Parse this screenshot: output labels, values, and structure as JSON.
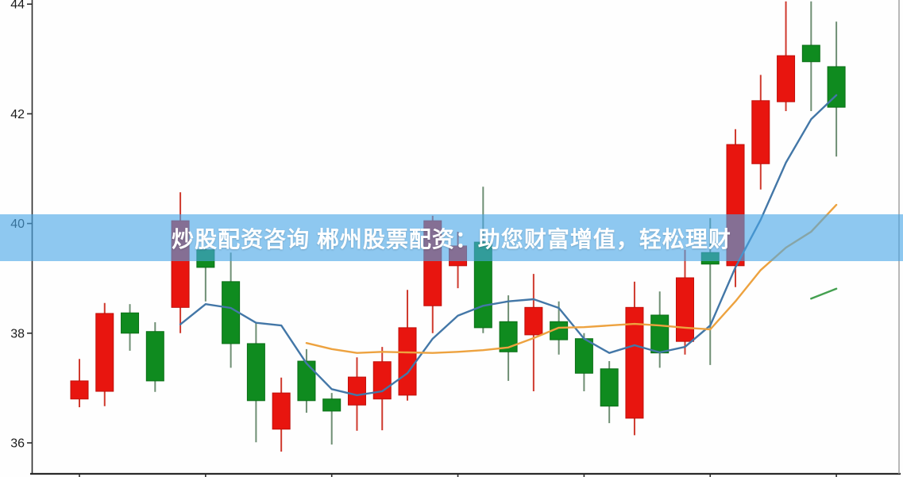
{
  "banner": {
    "text": "炒股配资咨询 郴州股票配资：助您财富增值，轻松理财",
    "bg_color": "rgba(72,166,231,0.62)",
    "text_color": "#ffffff"
  },
  "chart_data": {
    "type": "candlestick",
    "title": "",
    "xlabel": "",
    "ylabel": "",
    "y_ticks": [
      36,
      38,
      40,
      42,
      44
    ],
    "y_range": [
      35.45,
      44.08
    ],
    "x_tick_candle_indices": [
      0,
      5,
      10,
      15,
      20,
      25,
      30
    ],
    "grid": false,
    "legend_position": "none",
    "colors": {
      "up": "#e8150f",
      "up_border": "#c00f0a",
      "up_wick": "#cf3a2e",
      "down": "#0f8b1f",
      "down_border": "#0a6e16",
      "down_wick": "#6f8f74",
      "ma5": "#4377a7",
      "ma10": "#eda23f",
      "ma30": "#44a050",
      "axis": "#2b2b2b",
      "tick_label": "#1c1c1c",
      "right_spine": "#9a9a9a"
    },
    "candles": [
      {
        "o": 36.8,
        "h": 37.53,
        "l": 36.65,
        "c": 37.13
      },
      {
        "o": 36.94,
        "h": 38.55,
        "l": 36.67,
        "c": 38.36
      },
      {
        "o": 38.37,
        "h": 38.53,
        "l": 37.68,
        "c": 38.0
      },
      {
        "o": 38.03,
        "h": 38.2,
        "l": 36.93,
        "c": 37.13
      },
      {
        "o": 38.47,
        "h": 40.57,
        "l": 38.0,
        "c": 40.05
      },
      {
        "o": 39.52,
        "h": 39.59,
        "l": 38.58,
        "c": 39.2
      },
      {
        "o": 38.94,
        "h": 39.47,
        "l": 37.37,
        "c": 37.81
      },
      {
        "o": 37.81,
        "h": 38.19,
        "l": 36.01,
        "c": 36.77
      },
      {
        "o": 36.25,
        "h": 37.19,
        "l": 35.84,
        "c": 36.91
      },
      {
        "o": 37.49,
        "h": 37.71,
        "l": 36.55,
        "c": 36.77
      },
      {
        "o": 36.8,
        "h": 36.91,
        "l": 35.97,
        "c": 36.58
      },
      {
        "o": 36.69,
        "h": 37.56,
        "l": 36.22,
        "c": 37.2
      },
      {
        "o": 36.8,
        "h": 37.75,
        "l": 36.23,
        "c": 37.48
      },
      {
        "o": 36.87,
        "h": 38.79,
        "l": 36.77,
        "c": 38.1
      },
      {
        "o": 38.5,
        "h": 40.14,
        "l": 38.0,
        "c": 40.05
      },
      {
        "o": 39.23,
        "h": 39.85,
        "l": 38.82,
        "c": 39.59
      },
      {
        "o": 39.66,
        "h": 40.67,
        "l": 38.0,
        "c": 38.1
      },
      {
        "o": 38.21,
        "h": 38.69,
        "l": 37.13,
        "c": 37.66
      },
      {
        "o": 37.97,
        "h": 39.08,
        "l": 36.94,
        "c": 38.47
      },
      {
        "o": 38.21,
        "h": 38.58,
        "l": 37.61,
        "c": 37.88
      },
      {
        "o": 37.9,
        "h": 38.0,
        "l": 36.94,
        "c": 37.27
      },
      {
        "o": 37.35,
        "h": 37.49,
        "l": 36.36,
        "c": 36.67
      },
      {
        "o": 36.45,
        "h": 38.94,
        "l": 36.14,
        "c": 38.47
      },
      {
        "o": 38.33,
        "h": 38.76,
        "l": 37.37,
        "c": 37.64
      },
      {
        "o": 37.85,
        "h": 39.52,
        "l": 37.61,
        "c": 39.01
      },
      {
        "o": 39.47,
        "h": 40.1,
        "l": 37.42,
        "c": 39.26
      },
      {
        "o": 39.23,
        "h": 41.72,
        "l": 38.84,
        "c": 41.44
      },
      {
        "o": 41.09,
        "h": 42.71,
        "l": 40.62,
        "c": 42.24
      },
      {
        "o": 42.22,
        "h": 44.05,
        "l": 42.05,
        "c": 43.06
      },
      {
        "o": 43.25,
        "h": 44.05,
        "l": 42.05,
        "c": 42.95
      },
      {
        "o": 42.86,
        "h": 43.68,
        "l": 41.22,
        "c": 42.12
      }
    ],
    "series": [
      {
        "name": "MA5",
        "color": "ma5",
        "start": 4,
        "values": [
          38.16,
          38.53,
          38.46,
          38.19,
          38.14,
          37.45,
          36.98,
          36.87,
          36.94,
          37.27,
          37.9,
          38.32,
          38.5,
          38.58,
          38.62,
          38.46,
          37.9,
          37.64,
          37.78,
          37.65,
          37.75,
          38.14,
          39.2,
          40.07,
          41.11,
          41.9,
          42.34
        ]
      },
      {
        "name": "MA10",
        "color": "ma10",
        "start": 9,
        "values": [
          37.82,
          37.71,
          37.64,
          37.66,
          37.65,
          37.64,
          37.66,
          37.69,
          37.74,
          37.91,
          38.1,
          38.11,
          38.14,
          38.17,
          38.14,
          38.1,
          38.07,
          38.58,
          39.15,
          39.56,
          39.85,
          40.34
        ]
      },
      {
        "name": "MA30",
        "color": "ma30",
        "start": 29,
        "values": [
          38.63,
          38.81
        ]
      }
    ]
  }
}
